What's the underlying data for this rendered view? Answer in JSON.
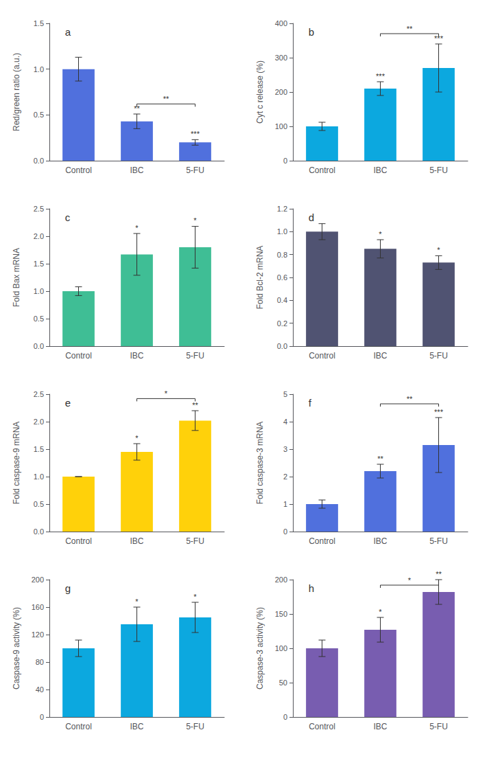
{
  "chart_data": [
    {
      "type": "bar",
      "title": "a",
      "ylabel": "Red/green ratio (a.u.)",
      "categories": [
        "Control",
        "IBC",
        "5-FU"
      ],
      "values": [
        1.0,
        0.43,
        0.2
      ],
      "errors": [
        0.13,
        0.08,
        0.03
      ],
      "ylim": [
        0,
        1.5
      ],
      "yticks": [
        {
          "value": 0,
          "label": "0.0"
        },
        0.5,
        {
          "value": 1.0,
          "label": "1.0"
        },
        1.5
      ],
      "grid": false,
      "annotations": [
        {
          "x": "IBC",
          "text": "**"
        },
        {
          "x": "5-FU",
          "text": "***"
        }
      ],
      "bracket": {
        "x1": "IBC",
        "x2": "5-FU",
        "y": 0.62,
        "label": "**"
      }
    },
    {
      "type": "bar",
      "title": "b",
      "ylabel": "Cyt c release (%)",
      "categories": [
        "Control",
        "IBC",
        "5-FU"
      ],
      "values": [
        100,
        210,
        270
      ],
      "errors": [
        12,
        20,
        70
      ],
      "ylim": [
        0,
        400
      ],
      "yticks": [
        0,
        100,
        200,
        300,
        400
      ],
      "grid": false,
      "annotations": [
        {
          "x": "IBC",
          "text": "***"
        },
        {
          "x": "5-FU",
          "text": "***"
        }
      ],
      "bracket": {
        "x1": "IBC",
        "x2": "5-FU",
        "y": 370,
        "label": "**"
      }
    },
    {
      "type": "bar",
      "title": "c",
      "ylabel": "Fold Bax mRNA",
      "categories": [
        "Control",
        "IBC",
        "5-FU"
      ],
      "values": [
        1.0,
        1.67,
        1.8
      ],
      "errors": [
        0.08,
        0.38,
        0.38
      ],
      "ylim": [
        0,
        2.5
      ],
      "yticks": [
        {
          "value": 0,
          "label": "0.0"
        },
        0.5,
        {
          "value": 1.0,
          "label": "1.0"
        },
        1.5,
        {
          "value": 2.0,
          "label": "2.0"
        },
        2.5
      ],
      "grid": false,
      "annotations": [
        {
          "x": "IBC",
          "text": "*"
        },
        {
          "x": "5-FU",
          "text": "*"
        }
      ]
    },
    {
      "type": "bar",
      "title": "d",
      "ylabel": "Fold Bcl-2 mRNA",
      "categories": [
        "Control",
        "IBC",
        "5-FU"
      ],
      "values": [
        1.0,
        0.85,
        0.73
      ],
      "errors": [
        0.07,
        0.08,
        0.06
      ],
      "ylim": [
        0,
        1.2
      ],
      "yticks": [
        {
          "value": 0,
          "label": "0.0"
        },
        0.2,
        0.4,
        0.6,
        0.8,
        {
          "value": 1.0,
          "label": "1.0"
        },
        1.2
      ],
      "grid": false,
      "annotations": [
        {
          "x": "IBC",
          "text": "*"
        },
        {
          "x": "5-FU",
          "text": "*"
        }
      ]
    },
    {
      "type": "bar",
      "title": "e",
      "ylabel": "Fold caspase-9 mRNA",
      "categories": [
        "Control",
        "IBC",
        "5-FU"
      ],
      "values": [
        1.0,
        1.45,
        2.02
      ],
      "errors": [
        0.0,
        0.15,
        0.18
      ],
      "ylim": [
        0,
        2.5
      ],
      "yticks": [
        {
          "value": 0,
          "label": "0.0"
        },
        0.5,
        {
          "value": 1.0,
          "label": "1.0"
        },
        1.5,
        {
          "value": 2.0,
          "label": "2.0"
        },
        2.5
      ],
      "grid": false,
      "annotations": [
        {
          "x": "IBC",
          "text": "*"
        },
        {
          "x": "5-FU",
          "text": "**"
        }
      ],
      "bracket": {
        "x1": "IBC",
        "x2": "5-FU",
        "y": 2.42,
        "label": "*"
      }
    },
    {
      "type": "bar",
      "title": "f",
      "ylabel": "Fold caspase-3 mRNA",
      "categories": [
        "Control",
        "IBC",
        "5-FU"
      ],
      "values": [
        1.0,
        2.2,
        3.15
      ],
      "errors": [
        0.15,
        0.25,
        1.0
      ],
      "ylim": [
        0,
        5
      ],
      "yticks": [
        0,
        1,
        2,
        3,
        4,
        5
      ],
      "grid": false,
      "annotations": [
        {
          "x": "IBC",
          "text": "**"
        },
        {
          "x": "5-FU",
          "text": "***"
        }
      ],
      "bracket": {
        "x1": "IBC",
        "x2": "5-FU",
        "y": 4.65,
        "label": "**"
      }
    },
    {
      "type": "bar",
      "title": "g",
      "ylabel": "Caspase-9 activity (%)",
      "categories": [
        "Control",
        "IBC",
        "5-FU"
      ],
      "values": [
        100,
        135,
        145
      ],
      "errors": [
        12,
        25,
        22
      ],
      "ylim": [
        0,
        200
      ],
      "yticks": [
        0,
        40,
        80,
        120,
        160,
        200
      ],
      "grid": false,
      "annotations": [
        {
          "x": "IBC",
          "text": "*"
        },
        {
          "x": "5-FU",
          "text": "*"
        }
      ]
    },
    {
      "type": "bar",
      "title": "h",
      "ylabel": "Caspase-3 activity (%)",
      "categories": [
        "Control",
        "IBC",
        "5-FU"
      ],
      "values": [
        100,
        127,
        182
      ],
      "errors": [
        12,
        18,
        18
      ],
      "ylim": [
        0,
        200
      ],
      "yticks": [
        0,
        50,
        100,
        150,
        200
      ],
      "grid": false,
      "annotations": [
        {
          "x": "IBC",
          "text": "*"
        },
        {
          "x": "5-FU",
          "text": "**"
        }
      ],
      "bracket": {
        "x1": "IBC",
        "x2": "5-FU",
        "y": 192,
        "label": "*"
      }
    }
  ]
}
